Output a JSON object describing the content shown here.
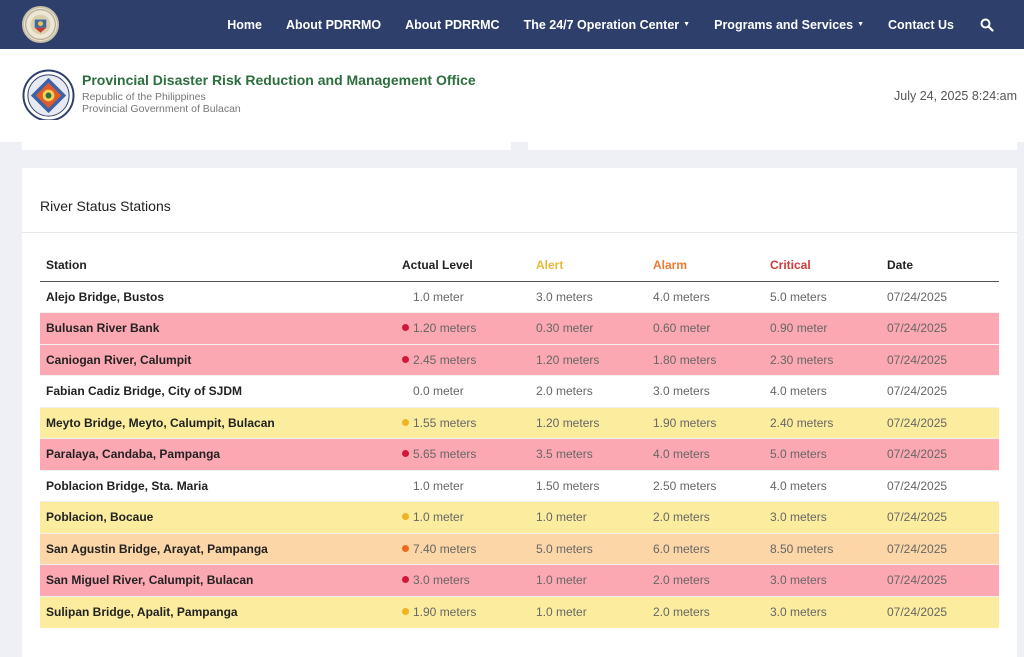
{
  "nav": {
    "items": [
      {
        "label": "Home",
        "dropdown": false
      },
      {
        "label": "About PDRRMO",
        "dropdown": false
      },
      {
        "label": "About PDRRMC",
        "dropdown": false
      },
      {
        "label": "The 24/7 Operation Center",
        "dropdown": true
      },
      {
        "label": "Programs and Services",
        "dropdown": true
      },
      {
        "label": "Contact Us",
        "dropdown": false
      }
    ],
    "search_icon": "search-icon"
  },
  "header": {
    "title": "Provincial Disaster Risk Reduction and Management Office",
    "subtitle1": "Republic of the Philippines",
    "subtitle2": "Provincial Government of Bulacan",
    "datetime": "July 24, 2025 8:24:am"
  },
  "card": {
    "title": "River Status Stations"
  },
  "table": {
    "headers": {
      "station": "Station",
      "level": "Actual Level",
      "alert": "Alert",
      "alarm": "Alarm",
      "critical": "Critical",
      "date": "Date"
    },
    "header_colors": {
      "alert": "#e8b838",
      "alarm": "#ec7a34",
      "critical": "#d03a3a"
    },
    "status_colors": {
      "normal": "#ffffff",
      "alert": "#fcec9e",
      "alarm": "#fcd6a6",
      "critical": "#fca8b2"
    },
    "dot_colors": {
      "alert": "#f0b323",
      "alarm": "#f06a1c",
      "critical": "#d0183a"
    },
    "rows": [
      {
        "station": "Alejo Bridge, Bustos",
        "level": "1.0 meter",
        "alert": "3.0 meters",
        "alarm": "4.0 meters",
        "critical": "5.0 meters",
        "date": "07/24/2025",
        "status": "normal"
      },
      {
        "station": "Bulusan River Bank",
        "level": "1.20 meters",
        "alert": "0.30 meter",
        "alarm": "0.60 meter",
        "critical": "0.90 meter",
        "date": "07/24/2025",
        "status": "critical"
      },
      {
        "station": "Caniogan River, Calumpit",
        "level": "2.45 meters",
        "alert": "1.20 meters",
        "alarm": "1.80 meters",
        "critical": "2.30 meters",
        "date": "07/24/2025",
        "status": "critical"
      },
      {
        "station": "Fabian Cadiz Bridge, City of SJDM",
        "level": "0.0 meter",
        "alert": "2.0 meters",
        "alarm": "3.0 meters",
        "critical": "4.0 meters",
        "date": "07/24/2025",
        "status": "normal"
      },
      {
        "station": "Meyto Bridge, Meyto, Calumpit, Bulacan",
        "level": "1.55 meters",
        "alert": "1.20 meters",
        "alarm": "1.90 meters",
        "critical": "2.40 meters",
        "date": "07/24/2025",
        "status": "alert"
      },
      {
        "station": "Paralaya, Candaba, Pampanga",
        "level": "5.65 meters",
        "alert": "3.5 meters",
        "alarm": "4.0 meters",
        "critical": "5.0 meters",
        "date": "07/24/2025",
        "status": "critical"
      },
      {
        "station": "Poblacion Bridge, Sta. Maria",
        "level": "1.0 meter",
        "alert": "1.50 meters",
        "alarm": "2.50 meters",
        "critical": "4.0 meters",
        "date": "07/24/2025",
        "status": "normal"
      },
      {
        "station": "Poblacion, Bocaue",
        "level": "1.0 meter",
        "alert": "1.0 meter",
        "alarm": "2.0 meters",
        "critical": "3.0 meters",
        "date": "07/24/2025",
        "status": "alert"
      },
      {
        "station": "San Agustin Bridge, Arayat, Pampanga",
        "level": "7.40 meters",
        "alert": "5.0 meters",
        "alarm": "6.0 meters",
        "critical": "8.50 meters",
        "date": "07/24/2025",
        "status": "alarm"
      },
      {
        "station": "San Miguel River, Calumpit, Bulacan",
        "level": "3.0 meters",
        "alert": "1.0 meter",
        "alarm": "2.0 meters",
        "critical": "3.0 meters",
        "date": "07/24/2025",
        "status": "critical"
      },
      {
        "station": "Sulipan Bridge, Apalit, Pampanga",
        "level": "1.90 meters",
        "alert": "1.0 meter",
        "alarm": "2.0 meters",
        "critical": "3.0 meters",
        "date": "07/24/2025",
        "status": "alert"
      }
    ]
  }
}
